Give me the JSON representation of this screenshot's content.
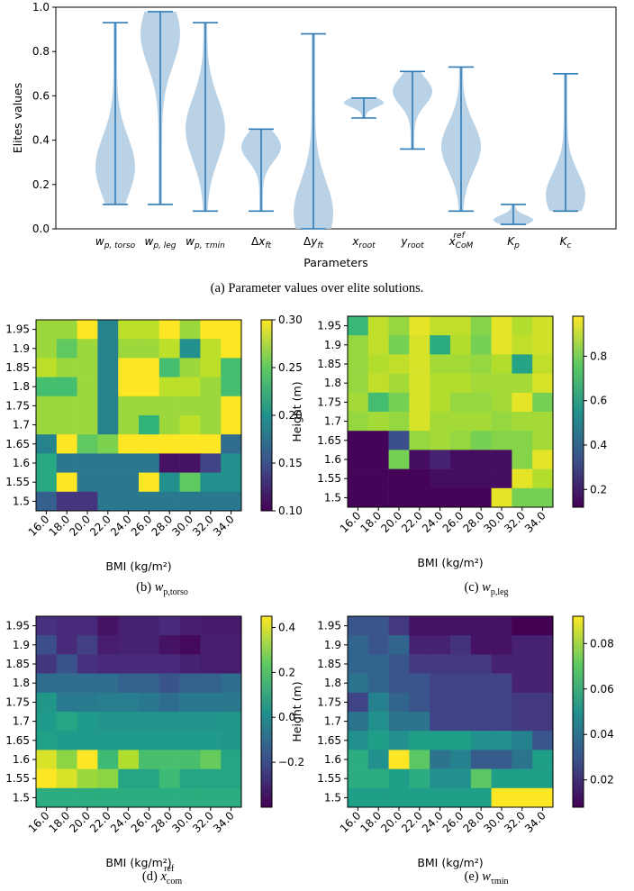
{
  "captions": {
    "a": "(a) Parameter values over elite solutions.",
    "b_prefix": "(b)",
    "c_prefix": "(c)",
    "d_prefix": "(d)",
    "e_prefix": "(e)"
  },
  "chart_data": [
    {
      "type": "violin",
      "id": "a",
      "xlabel": "Parameters",
      "ylabel": "Elites values",
      "ylim": [
        0,
        1.0
      ],
      "yticks": [
        0.0,
        0.2,
        0.4,
        0.6,
        0.8,
        1.0
      ],
      "color": "#b6d0e5",
      "line_color": "#2f7bb6",
      "categories": [
        "w_p,torso",
        "w_p,leg",
        "w_p,τmin",
        "Δx_ft",
        "Δy_ft",
        "x_root",
        "y_root",
        "x_CoM^ref",
        "K_p",
        "K_c"
      ],
      "ranges": [
        [
          0.11,
          0.93
        ],
        [
          0.11,
          0.98
        ],
        [
          0.08,
          0.93
        ],
        [
          0.08,
          0.45
        ],
        [
          0.0,
          0.88
        ],
        [
          0.5,
          0.59
        ],
        [
          0.36,
          0.71
        ],
        [
          0.08,
          0.73
        ],
        [
          0.02,
          0.11
        ],
        [
          0.08,
          0.7
        ]
      ],
      "density_peaks": [
        0.28,
        0.88,
        0.45,
        0.37,
        0.07,
        0.57,
        0.62,
        0.37,
        0.04,
        0.15
      ]
    },
    {
      "type": "heatmap",
      "id": "b",
      "xlabel": "BMI (kg/m²)",
      "ylabel": "Height (m)",
      "x": [
        "16.0",
        "18.0",
        "20.0",
        "22.0",
        "24.0",
        "26.0",
        "28.0",
        "30.0",
        "32.0",
        "34.0"
      ],
      "y": [
        "1.95",
        "1.9",
        "1.85",
        "1.8",
        "1.75",
        "1.7",
        "1.65",
        "1.6",
        "1.55",
        "1.5"
      ],
      "colorbar_ticks": [
        "0.30",
        "0.25",
        "0.20",
        "0.15",
        "0.10"
      ],
      "vmin": 0.1,
      "vmax": 0.3,
      "values": [
        [
          0.27,
          0.27,
          0.3,
          0.19,
          0.28,
          0.28,
          0.3,
          0.27,
          0.3,
          0.3
        ],
        [
          0.27,
          0.25,
          0.27,
          0.19,
          0.27,
          0.27,
          0.28,
          0.2,
          0.28,
          0.3
        ],
        [
          0.28,
          0.27,
          0.27,
          0.19,
          0.3,
          0.3,
          0.24,
          0.27,
          0.28,
          0.24
        ],
        [
          0.24,
          0.24,
          0.27,
          0.19,
          0.3,
          0.3,
          0.28,
          0.28,
          0.27,
          0.24
        ],
        [
          0.27,
          0.27,
          0.27,
          0.19,
          0.27,
          0.27,
          0.27,
          0.27,
          0.27,
          0.3
        ],
        [
          0.27,
          0.27,
          0.27,
          0.19,
          0.27,
          0.23,
          0.27,
          0.28,
          0.27,
          0.3
        ],
        [
          0.19,
          0.3,
          0.25,
          0.26,
          0.3,
          0.3,
          0.3,
          0.3,
          0.3,
          0.17
        ],
        [
          0.22,
          0.18,
          0.18,
          0.18,
          0.18,
          0.18,
          0.11,
          0.11,
          0.14,
          0.2
        ],
        [
          0.22,
          0.3,
          0.18,
          0.18,
          0.18,
          0.3,
          0.2,
          0.25,
          0.2,
          0.2
        ],
        [
          0.16,
          0.13,
          0.13,
          0.18,
          0.18,
          0.18,
          0.18,
          0.18,
          0.18,
          0.18
        ]
      ]
    },
    {
      "type": "heatmap",
      "id": "c",
      "xlabel": "BMI (kg/m²)",
      "ylabel": "Height (m)",
      "x": [
        "16.0",
        "18.0",
        "20.0",
        "22.0",
        "24.0",
        "26.0",
        "28.0",
        "30.0",
        "32.0",
        "34.0"
      ],
      "y": [
        "1.95",
        "1.9",
        "1.85",
        "1.8",
        "1.75",
        "1.7",
        "1.65",
        "1.6",
        "1.55",
        "1.5"
      ],
      "colorbar_ticks": [
        "0.8",
        "0.6",
        "0.4",
        "0.2"
      ],
      "vmin": 0.12,
      "vmax": 0.98,
      "values": [
        [
          0.7,
          0.9,
          0.84,
          0.95,
          0.9,
          0.9,
          0.82,
          0.95,
          0.88,
          0.92
        ],
        [
          0.84,
          0.9,
          0.8,
          0.93,
          0.65,
          0.88,
          0.8,
          0.95,
          0.9,
          0.92
        ],
        [
          0.84,
          0.88,
          0.9,
          0.93,
          0.86,
          0.86,
          0.84,
          0.88,
          0.62,
          0.9
        ],
        [
          0.84,
          0.9,
          0.86,
          0.93,
          0.88,
          0.88,
          0.86,
          0.86,
          0.86,
          0.93
        ],
        [
          0.86,
          0.72,
          0.8,
          0.93,
          0.88,
          0.84,
          0.84,
          0.86,
          0.95,
          0.8
        ],
        [
          0.84,
          0.86,
          0.84,
          0.93,
          0.86,
          0.86,
          0.86,
          0.84,
          0.86,
          0.86
        ],
        [
          0.13,
          0.13,
          0.33,
          0.84,
          0.86,
          0.84,
          0.8,
          0.82,
          0.82,
          0.86
        ],
        [
          0.13,
          0.13,
          0.8,
          0.15,
          0.2,
          0.15,
          0.15,
          0.15,
          0.82,
          0.95
        ],
        [
          0.13,
          0.13,
          0.13,
          0.13,
          0.15,
          0.15,
          0.15,
          0.15,
          0.95,
          0.88
        ],
        [
          0.13,
          0.13,
          0.13,
          0.13,
          0.13,
          0.13,
          0.13,
          0.95,
          0.8,
          0.8
        ]
      ]
    },
    {
      "type": "heatmap",
      "id": "d",
      "xlabel": "BMI (kg/m²)",
      "ylabel": "Height (m)",
      "x": [
        "16.0",
        "18.0",
        "20.0",
        "22.0",
        "24.0",
        "26.0",
        "28.0",
        "30.0",
        "32.0",
        "34.0"
      ],
      "y": [
        "1.95",
        "1.9",
        "1.85",
        "1.8",
        "1.75",
        "1.7",
        "1.65",
        "1.6",
        "1.55",
        "1.5"
      ],
      "colorbar_ticks": [
        "0.4",
        "0.2",
        "0.0",
        "−0.2"
      ],
      "vmin": -0.4,
      "vmax": 0.45,
      "values": [
        [
          -0.28,
          -0.3,
          -0.3,
          -0.36,
          -0.32,
          -0.32,
          -0.3,
          -0.33,
          -0.34,
          -0.34
        ],
        [
          -0.2,
          -0.3,
          -0.24,
          -0.33,
          -0.32,
          -0.32,
          -0.36,
          -0.38,
          -0.33,
          -0.33
        ],
        [
          -0.26,
          -0.18,
          -0.28,
          -0.3,
          -0.3,
          -0.3,
          -0.3,
          -0.32,
          -0.33,
          -0.33
        ],
        [
          -0.1,
          -0.1,
          -0.1,
          -0.1,
          -0.14,
          -0.14,
          -0.18,
          -0.14,
          -0.14,
          -0.1
        ],
        [
          0.05,
          -0.05,
          -0.05,
          -0.04,
          -0.04,
          -0.06,
          -0.1,
          -0.06,
          -0.06,
          -0.06
        ],
        [
          0.06,
          0.1,
          0.06,
          0.04,
          0.04,
          0.04,
          0.04,
          0.04,
          0.04,
          0.05
        ],
        [
          0.08,
          0.06,
          0.06,
          0.06,
          0.06,
          0.06,
          0.06,
          0.06,
          0.06,
          0.05
        ],
        [
          0.4,
          0.3,
          0.45,
          0.18,
          0.35,
          0.2,
          0.2,
          0.2,
          0.25,
          0.1
        ],
        [
          0.45,
          0.4,
          0.32,
          0.3,
          0.1,
          0.1,
          0.18,
          0.1,
          0.1,
          0.1
        ],
        [
          0.13,
          0.13,
          0.13,
          0.13,
          0.13,
          0.13,
          0.13,
          0.13,
          0.13,
          0.13
        ]
      ]
    },
    {
      "type": "heatmap",
      "id": "e",
      "xlabel": "BMI (kg/m²)",
      "ylabel": "Height (m)",
      "x": [
        "16.0",
        "18.0",
        "20.0",
        "22.0",
        "24.0",
        "26.0",
        "28.0",
        "30.0",
        "32.0",
        "34.0"
      ],
      "y": [
        "1.95",
        "1.9",
        "1.85",
        "1.8",
        "1.75",
        "1.7",
        "1.65",
        "1.6",
        "1.55",
        "1.5"
      ],
      "colorbar_ticks": [
        "0.08",
        "0.06",
        "0.04",
        "0.02"
      ],
      "vmin": 0.008,
      "vmax": 0.092,
      "values": [
        [
          0.03,
          0.03,
          0.022,
          0.012,
          0.012,
          0.012,
          0.012,
          0.012,
          0.008,
          0.008
        ],
        [
          0.035,
          0.03,
          0.035,
          0.016,
          0.016,
          0.02,
          0.012,
          0.012,
          0.016,
          0.016
        ],
        [
          0.035,
          0.035,
          0.03,
          0.022,
          0.022,
          0.022,
          0.022,
          0.016,
          0.016,
          0.016
        ],
        [
          0.04,
          0.035,
          0.03,
          0.03,
          0.025,
          0.025,
          0.025,
          0.025,
          0.016,
          0.016
        ],
        [
          0.025,
          0.045,
          0.035,
          0.03,
          0.025,
          0.025,
          0.025,
          0.025,
          0.022,
          0.022
        ],
        [
          0.04,
          0.05,
          0.04,
          0.04,
          0.025,
          0.025,
          0.025,
          0.025,
          0.022,
          0.022
        ],
        [
          0.05,
          0.055,
          0.05,
          0.055,
          0.055,
          0.055,
          0.05,
          0.05,
          0.045,
          0.03
        ],
        [
          0.06,
          0.05,
          0.092,
          0.07,
          0.04,
          0.045,
          0.032,
          0.032,
          0.04,
          0.055
        ],
        [
          0.06,
          0.06,
          0.055,
          0.06,
          0.05,
          0.05,
          0.07,
          0.055,
          0.055,
          0.055
        ],
        [
          0.055,
          0.055,
          0.055,
          0.055,
          0.055,
          0.055,
          0.055,
          0.092,
          0.092,
          0.092
        ]
      ]
    }
  ]
}
